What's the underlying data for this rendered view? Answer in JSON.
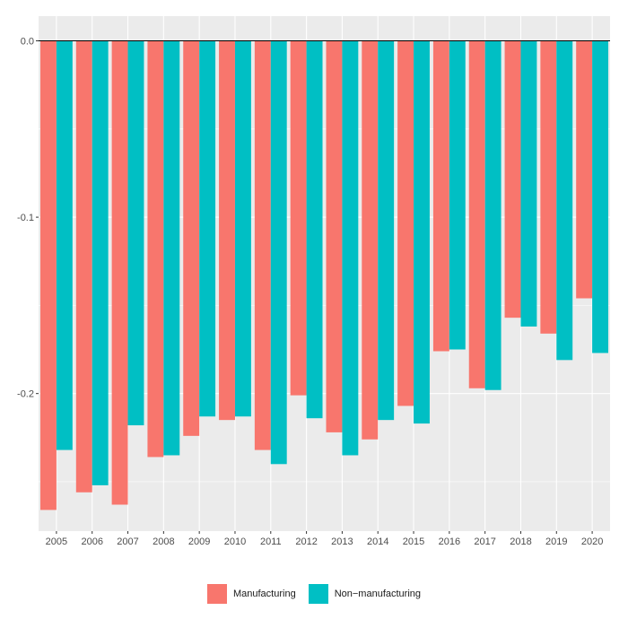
{
  "chart_data": {
    "type": "bar",
    "categories": [
      "2005",
      "2006",
      "2007",
      "2008",
      "2009",
      "2010",
      "2011",
      "2012",
      "2013",
      "2014",
      "2015",
      "2016",
      "2017",
      "2018",
      "2019",
      "2020"
    ],
    "series": [
      {
        "name": "Manufacturing",
        "color": "#F8766D",
        "values": [
          -0.266,
          -0.256,
          -0.263,
          -0.236,
          -0.224,
          -0.215,
          -0.232,
          -0.201,
          -0.222,
          -0.226,
          -0.207,
          -0.176,
          -0.197,
          -0.157,
          -0.166,
          -0.146
        ]
      },
      {
        "name": "Non−manufacturing",
        "color": "#00BFC4",
        "values": [
          -0.232,
          -0.252,
          -0.218,
          -0.235,
          -0.213,
          -0.213,
          -0.24,
          -0.214,
          -0.235,
          -0.215,
          -0.217,
          -0.175,
          -0.198,
          -0.162,
          -0.181,
          -0.177
        ]
      }
    ],
    "yticks": [
      "0.0",
      "-0.1",
      "-0.2"
    ],
    "ytick_values": [
      0.0,
      -0.1,
      -0.2
    ],
    "ylim": [
      -0.278,
      0.014
    ],
    "xlabel": "",
    "ylabel": "",
    "title": "",
    "grid": true,
    "zero_line": true,
    "legend_position": "bottom",
    "panel_background": "#EBEBEB"
  },
  "legend": {
    "items": [
      {
        "label": "Manufacturing",
        "color": "#F8766D"
      },
      {
        "label": "Non−manufacturing",
        "color": "#00BFC4"
      }
    ]
  }
}
